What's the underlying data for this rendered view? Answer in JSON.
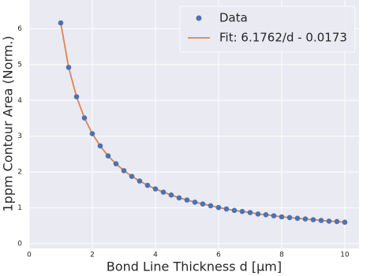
{
  "chart_data": {
    "type": "scatter",
    "x_label": "Bond Line Thickness d [μm]",
    "y_label": "1ppm Contour Area (Norm.)",
    "x": [
      1,
      1.25,
      1.5,
      1.75,
      2,
      2.25,
      2.5,
      2.75,
      3,
      3.25,
      3.5,
      3.75,
      4,
      4.25,
      4.5,
      4.75,
      5,
      5.25,
      5.5,
      5.75,
      6,
      6.25,
      6.5,
      6.75,
      7,
      7.25,
      7.5,
      7.75,
      8,
      8.25,
      8.5,
      8.75,
      9,
      9.25,
      9.5,
      9.75,
      10
    ],
    "series": [
      {
        "name": "Data",
        "color": "#4c72b0",
        "style": "marker",
        "values": [
          6.16,
          4.92,
          4.1,
          3.51,
          3.07,
          2.73,
          2.45,
          2.23,
          2.04,
          1.88,
          1.75,
          1.63,
          1.53,
          1.44,
          1.36,
          1.28,
          1.22,
          1.16,
          1.11,
          1.06,
          1.01,
          0.97,
          0.93,
          0.9,
          0.87,
          0.83,
          0.81,
          0.78,
          0.75,
          0.73,
          0.71,
          0.69,
          0.67,
          0.65,
          0.63,
          0.62,
          0.6
        ]
      },
      {
        "name": "Fit: 6.1762/d - 0.0173",
        "color": "#dd8452",
        "style": "line",
        "values": [
          6.16,
          4.92,
          4.1,
          3.51,
          3.07,
          2.73,
          2.45,
          2.23,
          2.04,
          1.88,
          1.75,
          1.63,
          1.53,
          1.44,
          1.36,
          1.28,
          1.22,
          1.16,
          1.11,
          1.06,
          1.01,
          0.97,
          0.93,
          0.9,
          0.87,
          0.83,
          0.81,
          0.78,
          0.75,
          0.73,
          0.71,
          0.69,
          0.67,
          0.65,
          0.63,
          0.62,
          0.6
        ]
      }
    ],
    "xlim": [
      0,
      10.45
    ],
    "ylim": [
      -0.13,
      6.8
    ],
    "xticks": [
      0,
      2,
      4,
      6,
      8,
      10
    ],
    "yticks": [
      0,
      1,
      2,
      3,
      4,
      5,
      6
    ],
    "grid": true,
    "legend": "upper right"
  }
}
